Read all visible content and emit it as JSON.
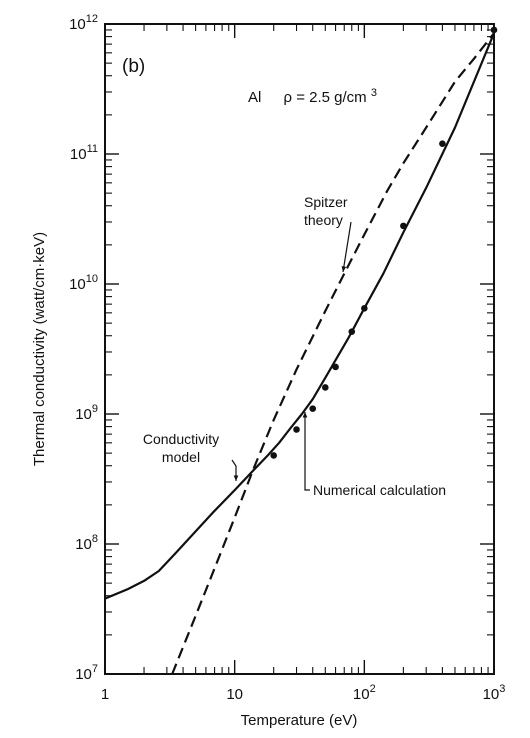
{
  "chart_data": {
    "type": "line",
    "panel_label": "(b)",
    "title": "",
    "header_material": "Al",
    "header_density": "ρ = 2.5 g/cm",
    "header_density_exponent": "3",
    "xlabel": "Temperature (eV)",
    "ylabel": "Thermal conductivity (watt/cm·keV)",
    "xscale": "log",
    "yscale": "log",
    "xlim": [
      1,
      1000
    ],
    "ylim": [
      10000000,
      1000000000000
    ],
    "grid": false,
    "x_ticks": [
      {
        "value": 1,
        "base": "1",
        "exp": ""
      },
      {
        "value": 10,
        "base": "10",
        "exp": ""
      },
      {
        "value": 100,
        "base": "10",
        "exp": "2"
      },
      {
        "value": 1000,
        "base": "10",
        "exp": "3"
      }
    ],
    "y_ticks": [
      {
        "value": 10000000,
        "base": "10",
        "exp": "7"
      },
      {
        "value": 100000000,
        "base": "10",
        "exp": "8"
      },
      {
        "value": 1000000000,
        "base": "10",
        "exp": "9"
      },
      {
        "value": 10000000000,
        "base": "10",
        "exp": "10"
      },
      {
        "value": 100000000000,
        "base": "10",
        "exp": "11"
      },
      {
        "value": 1000000000000,
        "base": "10",
        "exp": "12"
      }
    ],
    "series": [
      {
        "name": "Conductivity model",
        "style": "solid",
        "x": [
          1,
          1.5,
          2,
          2.6,
          3.5,
          5,
          7,
          10,
          14,
          18,
          22,
          27,
          33,
          40,
          50,
          60,
          75,
          100,
          140,
          200,
          300,
          500,
          1000
        ],
        "y": [
          38000000,
          45000000,
          52000000,
          62000000,
          85000000,
          125000000,
          180000000,
          260000000,
          370000000,
          480000000,
          600000000,
          780000000,
          1000000000,
          1300000000,
          1900000000,
          2600000000,
          3800000000,
          6500000000,
          12000000000,
          25000000000,
          55000000000,
          160000000000,
          850000000000
        ]
      },
      {
        "name": "Spitzer theory",
        "style": "dashed",
        "x": [
          3.3,
          5,
          7,
          10,
          14,
          20,
          30,
          50,
          70,
          100,
          150,
          200,
          300,
          500,
          700,
          1000
        ],
        "y": [
          10000000,
          28000000,
          65000000,
          160000000,
          380000000,
          900000000,
          2200000000,
          6200000000,
          12000000000,
          24000000000,
          52000000000,
          85000000000,
          160000000000,
          360000000000,
          540000000000,
          850000000000
        ]
      },
      {
        "name": "Numerical calculation",
        "style": "points",
        "x": [
          20,
          30,
          40,
          50,
          60,
          80,
          100,
          200,
          400,
          1000
        ],
        "y": [
          480000000,
          760000000,
          1100000000,
          1600000000,
          2300000000,
          4300000000,
          6500000000,
          28000000000,
          120000000000,
          900000000000
        ]
      }
    ],
    "annotations": [
      {
        "lines": [
          "Spitzer",
          "theory"
        ]
      },
      {
        "lines": [
          "Conductivity",
          "model"
        ]
      },
      {
        "lines": [
          "Numerical calculation"
        ]
      }
    ]
  }
}
